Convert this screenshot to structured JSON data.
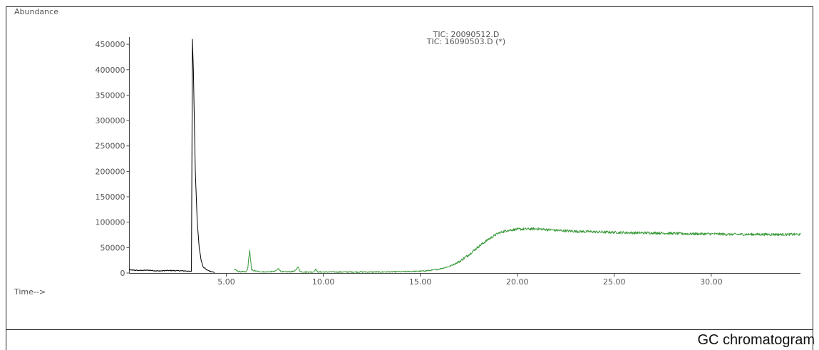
{
  "caption": "GC chromatogram",
  "chart_data": {
    "type": "line",
    "ylabel": "Abundance",
    "xlabel": "Time-->",
    "xlim": [
      0,
      34.6
    ],
    "ylim": [
      0,
      460000
    ],
    "x_ticks": [
      5,
      10,
      15,
      20,
      25,
      30
    ],
    "x_tick_labels": [
      "5.00",
      "10.00",
      "15.00",
      "20.00",
      "25.00",
      "30.00"
    ],
    "y_ticks": [
      0,
      50000,
      100000,
      150000,
      200000,
      250000,
      300000,
      350000,
      400000,
      450000
    ],
    "y_tick_labels": [
      "0",
      "50000",
      "100000",
      "150000",
      "200000",
      "250000",
      "300000",
      "350000",
      "400000",
      "450000"
    ],
    "series": [
      {
        "name": "TIC: 20090512.D",
        "color": "#000000",
        "x": [
          0.0,
          0.5,
          1.0,
          1.5,
          2.0,
          2.5,
          3.0,
          3.1,
          3.2,
          3.25,
          3.3,
          3.35,
          3.4,
          3.5,
          3.6,
          3.7,
          3.8,
          4.0,
          4.2,
          4.4
        ],
        "y": [
          6000,
          5000,
          5500,
          4000,
          5000,
          4500,
          4000,
          3000,
          3500,
          460000,
          400000,
          300000,
          200000,
          100000,
          50000,
          25000,
          12000,
          6000,
          3000,
          1000
        ]
      },
      {
        "name": "TIC: 16090503.D (*)",
        "color": "#3a9a3a",
        "x": [
          5.4,
          5.6,
          6.0,
          6.1,
          6.2,
          6.3,
          6.6,
          7.0,
          7.5,
          7.7,
          7.8,
          8.0,
          8.5,
          8.7,
          8.8,
          9.0,
          9.5,
          9.6,
          9.7,
          10.0,
          11.0,
          12.0,
          13.0,
          14.0,
          15.0,
          15.5,
          16.0,
          16.5,
          17.0,
          17.5,
          18.0,
          18.5,
          19.0,
          19.5,
          20.0,
          21.0,
          22.0,
          23.0,
          24.0,
          25.0,
          26.0,
          27.0,
          28.0,
          29.0,
          30.0,
          31.0,
          32.0,
          33.0,
          34.0,
          34.6
        ],
        "y": [
          8000,
          3000,
          2000,
          8000,
          45000,
          6000,
          3000,
          2000,
          3000,
          9000,
          3000,
          2000,
          3000,
          12000,
          3000,
          2000,
          2000,
          8000,
          2000,
          2000,
          2000,
          2000,
          2000,
          2500,
          3500,
          5000,
          8000,
          13000,
          22000,
          36000,
          52000,
          66000,
          78000,
          84000,
          86000,
          87000,
          84000,
          82000,
          81000,
          80000,
          79000,
          79000,
          78000,
          77000,
          77000,
          76000,
          76000,
          76000,
          76000,
          76000
        ]
      }
    ]
  }
}
